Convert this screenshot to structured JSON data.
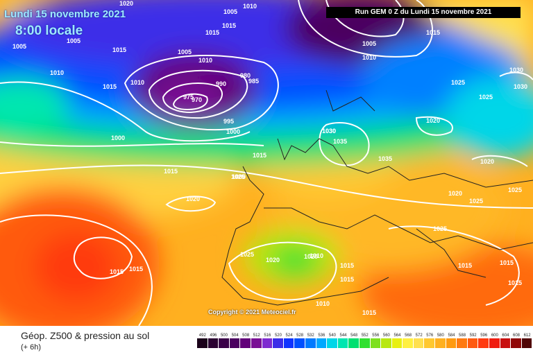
{
  "map": {
    "date_label": "Lundi 15 novembre 2021",
    "time_label": "8:00 locale",
    "run_label": "Run GEM 0 Z du Lundi 15 novembre 2021",
    "copyright": "Copyright © 2021 Meteociel.fr",
    "isobar_labels": [
      "1005",
      "1005",
      "1015",
      "1020",
      "1000",
      "1015",
      "1010",
      "1005",
      "1015",
      "1010",
      "1015",
      "1010",
      "1005",
      "1015",
      "1010",
      "990",
      "985",
      "980",
      "975",
      "970",
      "995",
      "1000",
      "1000",
      "1015",
      "1020",
      "1030",
      "1025",
      "1035",
      "1035",
      "1030",
      "1025",
      "1015",
      "1010",
      "1015",
      "1020",
      "1010",
      "1015",
      "1015",
      "1015",
      "1005",
      "1010",
      "1015",
      "1025",
      "1025",
      "1020",
      "1020",
      "1025",
      "1030",
      "1030",
      "1020",
      "1025",
      "1025",
      "1020",
      "1015",
      "1015",
      "1015"
    ],
    "colors": {
      "low": "#4b0057",
      "high": "#ff2a1a",
      "isobar": "#ffffff"
    }
  },
  "legend": {
    "title": "Géop. Z500 & pression au sol",
    "subtitle": "(+ 6h)",
    "scale": [
      {
        "label": "492",
        "color": "#1a0019"
      },
      {
        "label": "496",
        "color": "#2a0030"
      },
      {
        "label": "500",
        "color": "#3a0048"
      },
      {
        "label": "504",
        "color": "#4b0060"
      },
      {
        "label": "508",
        "color": "#62007a"
      },
      {
        "label": "512",
        "color": "#7a1095"
      },
      {
        "label": "516",
        "color": "#7e2bd0"
      },
      {
        "label": "520",
        "color": "#3c2de8"
      },
      {
        "label": "524",
        "color": "#1034ff"
      },
      {
        "label": "528",
        "color": "#0050ff"
      },
      {
        "label": "532",
        "color": "#007aff"
      },
      {
        "label": "536",
        "color": "#00a8ff"
      },
      {
        "label": "540",
        "color": "#00d6e8"
      },
      {
        "label": "544",
        "color": "#00e6b0"
      },
      {
        "label": "548",
        "color": "#00e070"
      },
      {
        "label": "552",
        "color": "#30e030"
      },
      {
        "label": "556",
        "color": "#7ee020"
      },
      {
        "label": "560",
        "color": "#b8e810"
      },
      {
        "label": "564",
        "color": "#e8f010"
      },
      {
        "label": "568",
        "color": "#fff040"
      },
      {
        "label": "572",
        "color": "#ffe050"
      },
      {
        "label": "576",
        "color": "#ffc830"
      },
      {
        "label": "580",
        "color": "#ffb020"
      },
      {
        "label": "584",
        "color": "#ff9a10"
      },
      {
        "label": "588",
        "color": "#ff7a10"
      },
      {
        "label": "592",
        "color": "#ff5a10"
      },
      {
        "label": "596",
        "color": "#ff3a10"
      },
      {
        "label": "600",
        "color": "#f01c10"
      },
      {
        "label": "604",
        "color": "#c81010"
      },
      {
        "label": "608",
        "color": "#900808"
      },
      {
        "label": "612",
        "color": "#500404"
      }
    ]
  }
}
